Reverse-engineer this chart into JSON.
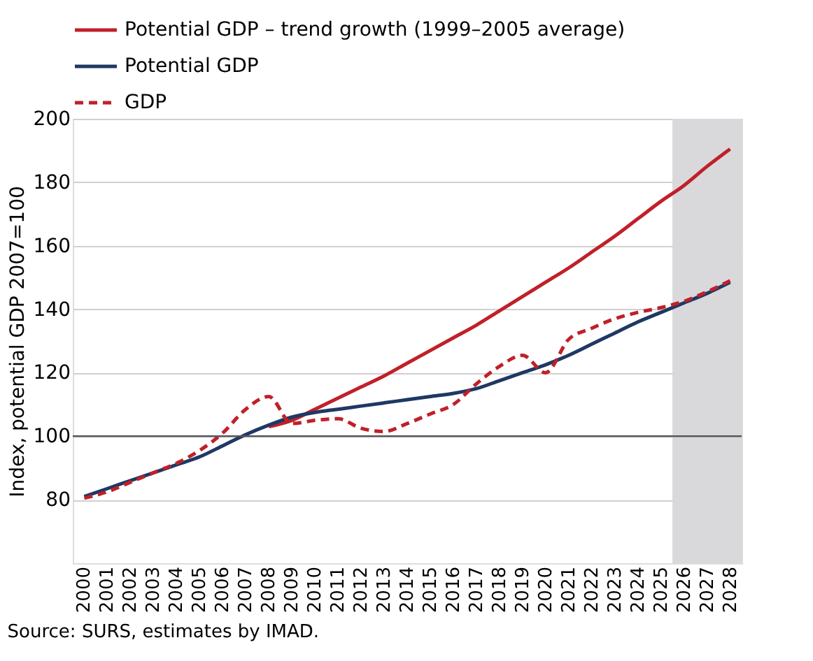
{
  "chart_data": {
    "type": "line",
    "ylabel": "Index, potential GDP 2007=100",
    "categories": [
      "2000",
      "2001",
      "2002",
      "2003",
      "2004",
      "2005",
      "2006",
      "2007",
      "2008",
      "2009",
      "2010",
      "2011",
      "2012",
      "2013",
      "2014",
      "2015",
      "2016",
      "2017",
      "2018",
      "2019",
      "2020",
      "2021",
      "2022",
      "2023",
      "2024",
      "2025",
      "2026",
      "2027",
      "2028"
    ],
    "series": [
      {
        "name": "Potential GDP – trend growth (1999–2005 average)",
        "color": "#c0202a",
        "line_style": "solid",
        "values": [
          null,
          null,
          null,
          null,
          null,
          null,
          null,
          null,
          103,
          105,
          108.5,
          112,
          115.5,
          119,
          123,
          127,
          131,
          135,
          139.5,
          144,
          148.5,
          153,
          158,
          163,
          168.5,
          174,
          179,
          185,
          190.5
        ]
      },
      {
        "name": "Potential GDP",
        "color": "#1f3864",
        "line_style": "solid",
        "values": [
          81,
          83.5,
          86,
          88.5,
          91,
          93.5,
          97,
          100.5,
          103.5,
          106,
          107.5,
          108.5,
          109.5,
          110.5,
          111.5,
          112.5,
          113.5,
          115,
          117.5,
          120,
          122.5,
          125.5,
          129,
          132.5,
          136,
          139,
          142,
          145,
          148.5
        ]
      },
      {
        "name": "GDP",
        "color": "#c0202a",
        "line_style": "dashed",
        "values": [
          80.5,
          82.5,
          85.5,
          88.5,
          91.5,
          95.5,
          101,
          108.5,
          112.5,
          104,
          105,
          105.5,
          102.5,
          101.5,
          104,
          107,
          110,
          116.5,
          122,
          125.5,
          120,
          130.5,
          134,
          137,
          139,
          140.5,
          142.5,
          145.5,
          149
        ]
      }
    ],
    "ylim": [
      60,
      200
    ],
    "yticks": [
      80,
      100,
      120,
      140,
      160,
      180,
      200
    ],
    "grid": "y",
    "legend": "top left",
    "marker": "none",
    "ref_lines": [
      {
        "axis": "y",
        "value": 100,
        "color": "#595959"
      }
    ],
    "bands": [
      {
        "axis": "x",
        "from": "2026",
        "to": "2028",
        "color": "#d9d9db"
      }
    ],
    "annotations": [
      "Source: SURS, estimates by IMAD."
    ]
  }
}
